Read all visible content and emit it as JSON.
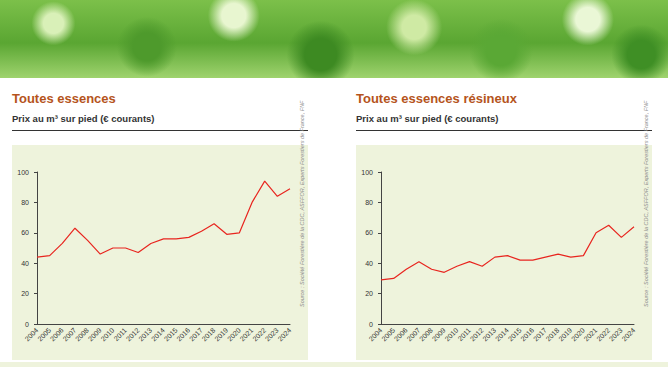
{
  "chart_data": [
    {
      "type": "line",
      "title": "Toutes essences",
      "subtitle": "Prix au m³ sur pied (€ courants)",
      "source": "Source : Société Forestière de la CDC, ASFFOR, Experts Forestiers de France, FNF",
      "categories": [
        "2004",
        "2005",
        "2006",
        "2007",
        "2008",
        "2009",
        "2010",
        "2011",
        "2012",
        "2013",
        "2014",
        "2015",
        "2016",
        "2017",
        "2018",
        "2019",
        "2020",
        "2021",
        "2022",
        "2023",
        "2024"
      ],
      "values": [
        44,
        45,
        53,
        63,
        55,
        46,
        50,
        50,
        47,
        53,
        56,
        56,
        57,
        61,
        66,
        59,
        60,
        80,
        94,
        84,
        89
      ],
      "color": "#e8251f",
      "ylim": [
        0,
        100
      ],
      "yticks": [
        0,
        20,
        40,
        60,
        80,
        100
      ],
      "grid": false
    },
    {
      "type": "line",
      "title": "Toutes essences résineux",
      "subtitle": "Prix au m³ sur pied (€ courants)",
      "source": "Source : Société Forestière de la CDC, ASFFOR, Experts Forestiers de France, FNF",
      "categories": [
        "2004",
        "2005",
        "2006",
        "2007",
        "2008",
        "2009",
        "2010",
        "2011",
        "2012",
        "2013",
        "2014",
        "2015",
        "2016",
        "2017",
        "2018",
        "2019",
        "2020",
        "2021",
        "2022",
        "2023",
        "2024"
      ],
      "values": [
        29,
        30,
        36,
        41,
        36,
        34,
        38,
        41,
        38,
        44,
        45,
        42,
        42,
        44,
        46,
        44,
        45,
        60,
        65,
        57,
        64
      ],
      "color": "#e8251f",
      "ylim": [
        0,
        100
      ],
      "yticks": [
        0,
        20,
        40,
        60,
        80,
        100
      ],
      "grid": false
    }
  ]
}
